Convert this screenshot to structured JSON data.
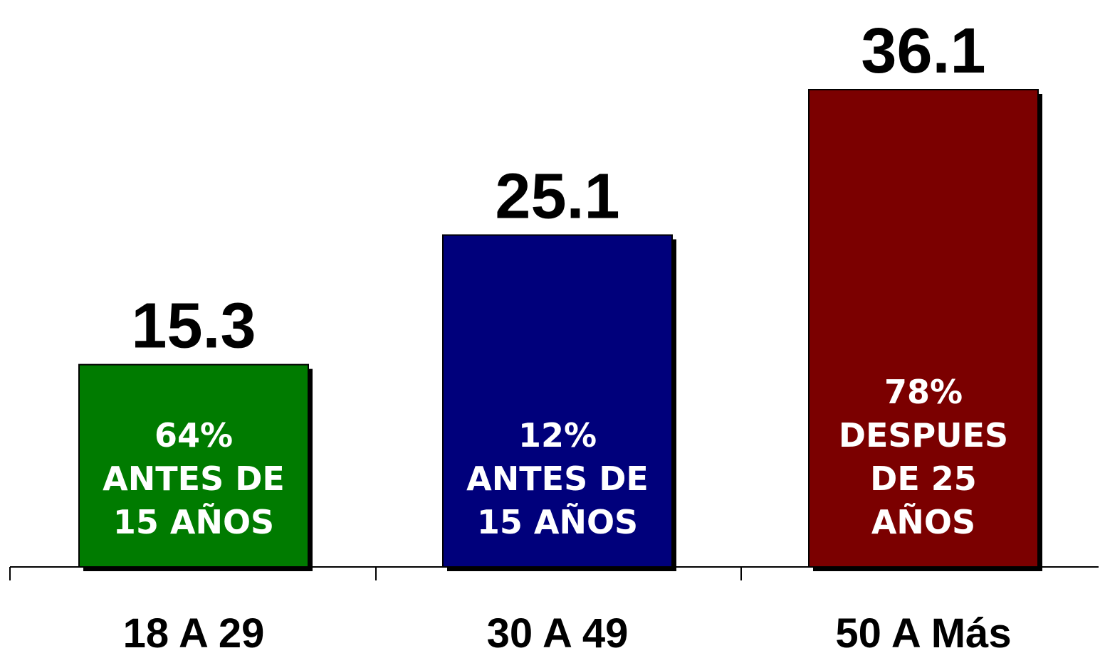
{
  "chart_data": {
    "type": "bar",
    "categories": [
      "18 A 29",
      "30 A 49",
      "50 A Más"
    ],
    "values": [
      15.3,
      25.1,
      36.1
    ],
    "ylim": [
      0,
      36.1
    ],
    "grid": false,
    "bar_colors": [
      "#007b00",
      "#00007b",
      "#7b0000"
    ],
    "bar_notes": [
      [
        "64%",
        "ANTES DE",
        "15 AÑOS"
      ],
      [
        "12%",
        "ANTES DE",
        "15 AÑOS"
      ],
      [
        "78%",
        "DESPUES",
        "DE 25",
        "AÑOS"
      ]
    ]
  }
}
